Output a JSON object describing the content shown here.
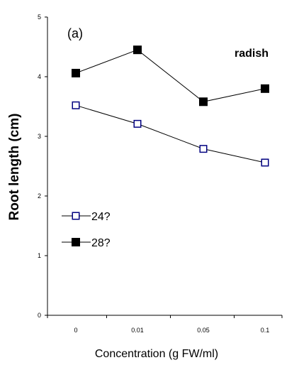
{
  "chart_data": {
    "type": "line",
    "panel_label": "(a)",
    "annotation": "radish",
    "xlabel": "Concentration (g FW/ml)",
    "ylabel": "Root length (cm)",
    "categories": [
      "0",
      "0.01",
      "0.05",
      "0.1"
    ],
    "ylim": [
      0,
      5
    ],
    "yticks": [
      "0",
      "1",
      "2",
      "3",
      "4",
      "5"
    ],
    "grid": false,
    "legend_position": "left-middle",
    "series": [
      {
        "name": "24?",
        "marker": "open-square",
        "color": "#000080",
        "line_color": "#000000",
        "values": [
          3.52,
          3.21,
          2.79,
          2.56
        ]
      },
      {
        "name": "28?",
        "marker": "filled-square",
        "color": "#000000",
        "line_color": "#000000",
        "values": [
          4.06,
          4.45,
          3.58,
          3.8
        ]
      }
    ]
  }
}
